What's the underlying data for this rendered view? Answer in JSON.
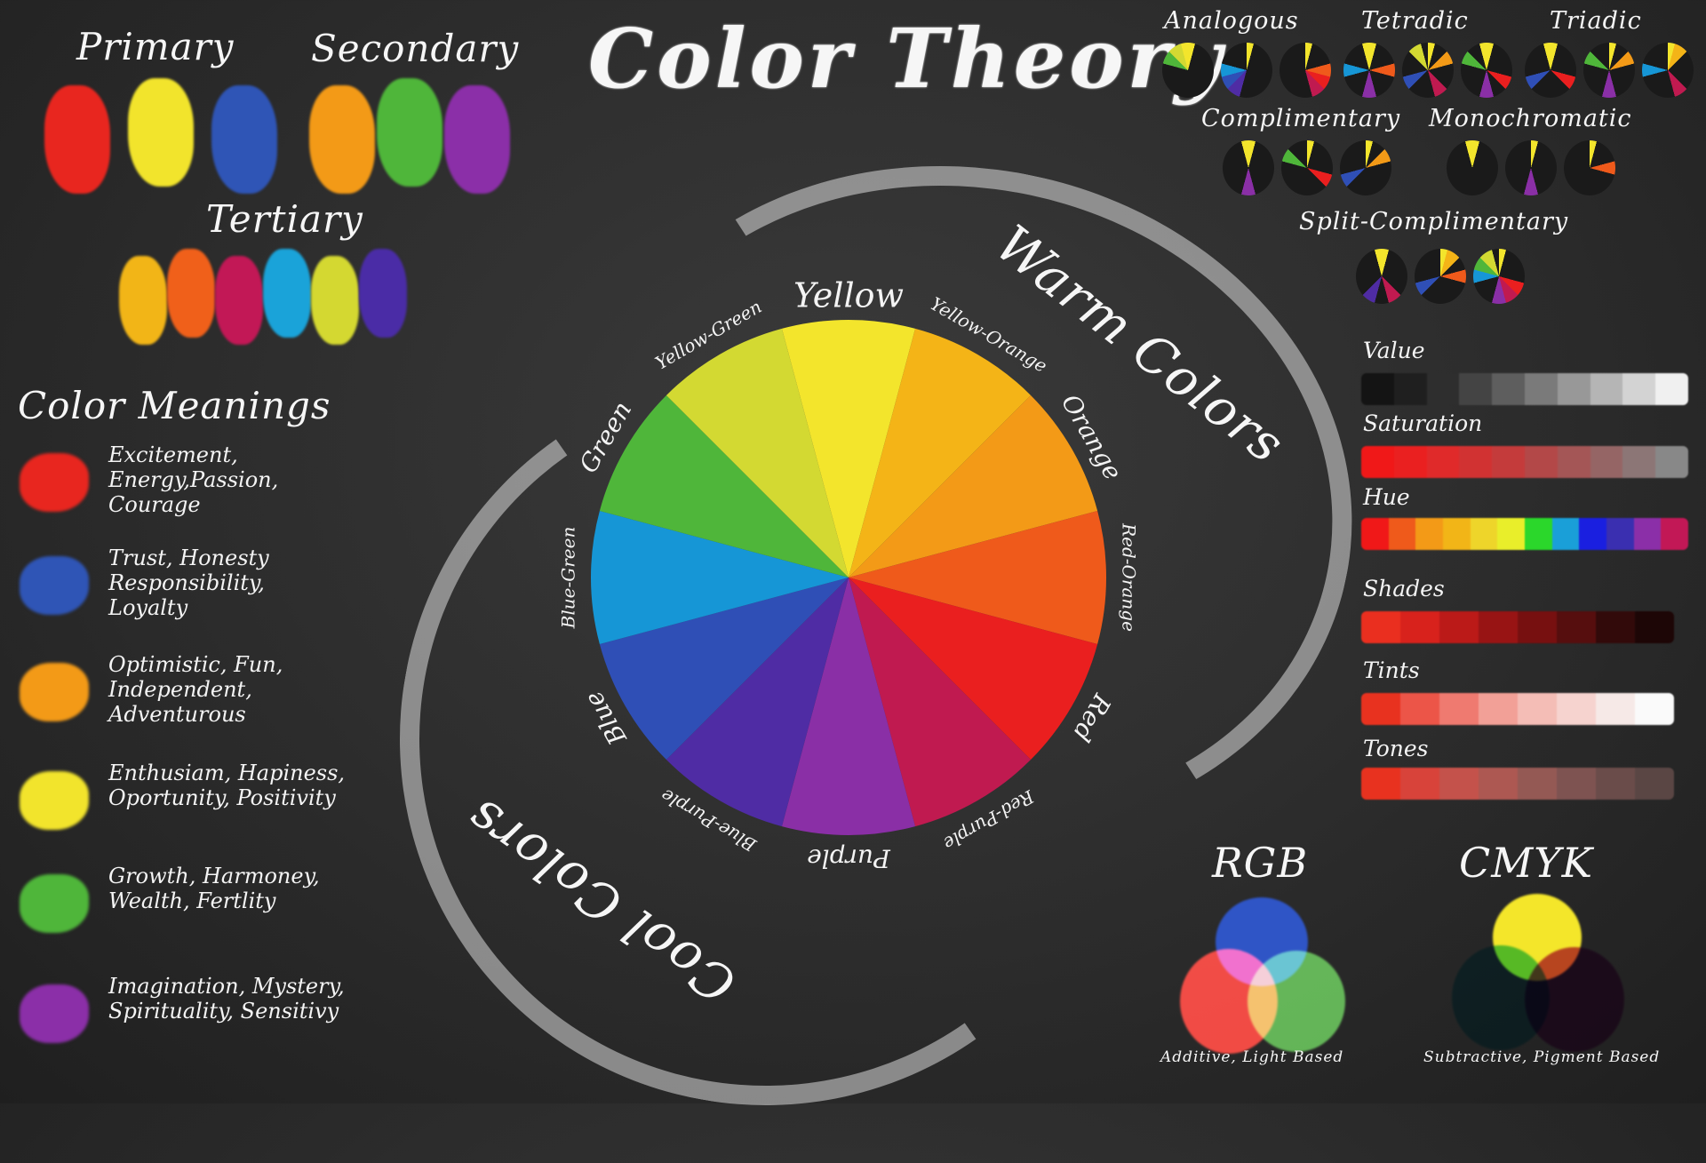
{
  "title": "Color Theory",
  "groups": {
    "primary": {
      "label": "Primary",
      "colors": [
        "#e8261f",
        "#f2e42c",
        "#2f55b6"
      ]
    },
    "secondary": {
      "label": "Secondary",
      "colors": [
        "#f39a17",
        "#4fb63a",
        "#8b2fa8"
      ]
    },
    "tertiary": {
      "label": "Tertiary",
      "colors": [
        "#f2b517",
        "#f0601a",
        "#c21856",
        "#1aa3d9",
        "#d4d831",
        "#4a2ca6"
      ]
    }
  },
  "meanings": {
    "heading": "Color Meanings",
    "items": [
      {
        "color": "#e8261f",
        "text": "Excitement,\nEnergy,Passion,\nCourage"
      },
      {
        "color": "#2f55b6",
        "text": "Trust, Honesty\nResponsibility,\nLoyalty"
      },
      {
        "color": "#f39a17",
        "text": "Optimistic, Fun,\nIndependent,\nAdventurous"
      },
      {
        "color": "#f2e42c",
        "text": "Enthusiam, Hapiness,\nOportunity, Positivity"
      },
      {
        "color": "#4fb63a",
        "text": "Growth, Harmoney,\nWealth, Fertlity"
      },
      {
        "color": "#8b2fa8",
        "text": "Imagination, Mystery,\nSpirituality, Sensitivy"
      }
    ]
  },
  "wheel": {
    "warm_label": "Warm Colors",
    "cool_label": "Cool Colors",
    "segments": [
      {
        "name": "Yellow",
        "color": "#f3e52c"
      },
      {
        "name": "Yellow-Orange",
        "color": "#f4b417"
      },
      {
        "name": "Orange",
        "color": "#f39a17"
      },
      {
        "name": "Red-Orange",
        "color": "#ef5a1b"
      },
      {
        "name": "Red",
        "color": "#ea1f1f"
      },
      {
        "name": "Red-Purple",
        "color": "#c01a50"
      },
      {
        "name": "Purple",
        "color": "#8a2fa6"
      },
      {
        "name": "Blue-Purple",
        "color": "#4f2ca4"
      },
      {
        "name": "Blue",
        "color": "#2f4fb6"
      },
      {
        "name": "Blue-Green",
        "color": "#1696d6"
      },
      {
        "name": "Green",
        "color": "#4fb63a"
      },
      {
        "name": "Yellow-Green",
        "color": "#d3d932"
      }
    ]
  },
  "harmonies": {
    "analogous": "Analogous",
    "tetradic": "Tetradic",
    "triadic": "Triadic",
    "complimentary": "Complimentary",
    "monochromatic": "Monochromatic",
    "split_complimentary": "Split-Complimentary"
  },
  "scales": {
    "value": {
      "label": "Value",
      "colors": [
        "#141414",
        "#1f1f1f",
        "#2e2e2e",
        "#444",
        "#5e5e5e",
        "#7a7a7a",
        "#989898",
        "#b5b5b5",
        "#d3d3d3",
        "#f0f0f0"
      ]
    },
    "saturation": {
      "label": "Saturation",
      "colors": [
        "#f01818",
        "#ea2020",
        "#e02a2a",
        "#d13232",
        "#c43b3b",
        "#b34848",
        "#a45656",
        "#956565",
        "#8c7676",
        "#888"
      ]
    },
    "hue": {
      "label": "Hue",
      "colors": [
        "#f01818",
        "#ef5a1b",
        "#f39a17",
        "#f2b517",
        "#eed52a",
        "#e9ee2a",
        "#2bd72b",
        "#1a9fd8",
        "#1a1fe0",
        "#3a2fb0",
        "#8b2fa8",
        "#c21856"
      ]
    },
    "shades": {
      "label": "Shades",
      "colors": [
        "#ea2f1f",
        "#d8221c",
        "#bb1a18",
        "#981414",
        "#771010",
        "#560e0e",
        "#320a0a",
        "#1d0606"
      ]
    },
    "tints": {
      "label": "Tints",
      "colors": [
        "#e8321f",
        "#ec5548",
        "#ef7a70",
        "#f2a097",
        "#f4bdb6",
        "#f6d3cf",
        "#f6e9e7",
        "#fafafa"
      ]
    },
    "tones": {
      "label": "Tones",
      "colors": [
        "#e8321f",
        "#d8433a",
        "#c4524b",
        "#ad5852",
        "#945954",
        "#7e5351",
        "#6a4c4a",
        "#5a4644"
      ]
    }
  },
  "models": {
    "rgb": {
      "label": "RGB",
      "caption": "Additive, Light Based",
      "colors": {
        "top": "#2f55c6",
        "left": "#ee2a22",
        "right": "#48a83a"
      }
    },
    "cmyk": {
      "label": "CMYK",
      "caption": "Subtractive, Pigment Based",
      "colors": {
        "top": "#f4e62a",
        "left": "#5bcde0",
        "right": "#c04cb8"
      }
    }
  }
}
